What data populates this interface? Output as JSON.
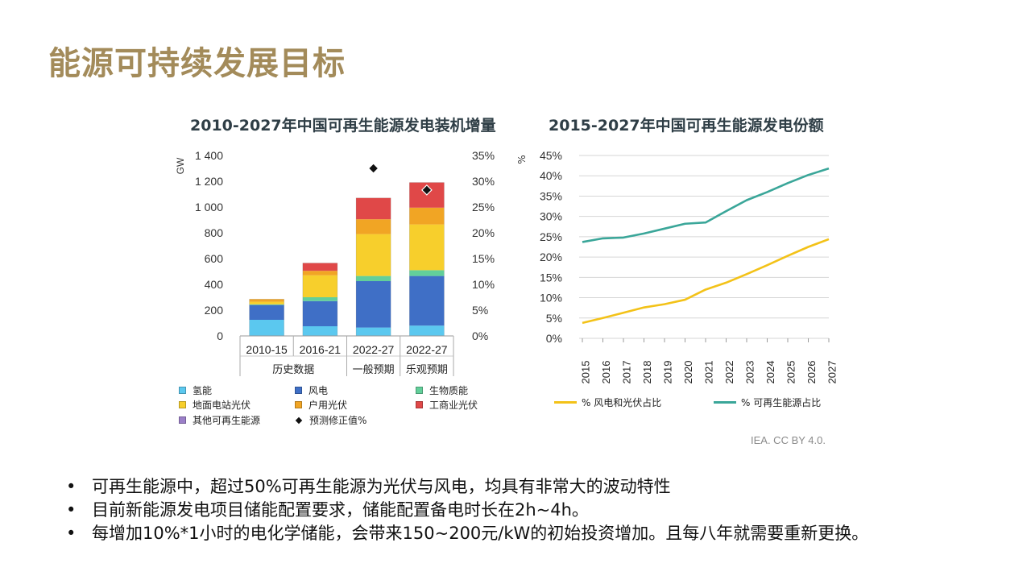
{
  "page": {
    "title": "能源可持续发展目标",
    "source": "IEA. CC BY 4.0.",
    "bullets": [
      "可再生能源中，超过50%可再生能源为光伏与风电，均具有非常大的波动特性",
      "目前新能源发电项目储能配置要求，储能配置备电时长在2h~4h。",
      "每增加10%*1小时的电化学储能，会带来150~200元/kW的初始投资增加。且每八年就需要重新更换。"
    ]
  },
  "chart_data": [
    {
      "type": "bar",
      "stacked": true,
      "title": "2010-2027年中国可再生能源发电装机增量",
      "ylabel": "GW",
      "ylim": [
        0,
        1400
      ],
      "yticks": [
        "0",
        "200",
        "400",
        "600",
        "800",
        "1 000",
        "1 200",
        "1 400"
      ],
      "y2lim": [
        0,
        35
      ],
      "y2ticks": [
        "0%",
        "5%",
        "10%",
        "15%",
        "20%",
        "25%",
        "30%",
        "35%"
      ],
      "categories": [
        "2010-15",
        "2016-21",
        "2022-27",
        "2022-27"
      ],
      "groups": [
        {
          "label": "历史数据",
          "span": 2
        },
        {
          "label": "一般预期",
          "span": 1
        },
        {
          "label": "乐观预期",
          "span": 1
        }
      ],
      "series": [
        {
          "name": "氢能",
          "color": "#5bc8ef",
          "values": [
            125,
            75,
            65,
            80
          ]
        },
        {
          "name": "风电",
          "color": "#3f6fc6",
          "values": [
            115,
            195,
            360,
            385
          ]
        },
        {
          "name": "生物质能",
          "color": "#62cf9a",
          "values": [
            5,
            30,
            40,
            45
          ]
        },
        {
          "name": "地面电站光伏",
          "color": "#f7cf2c",
          "values": [
            20,
            170,
            325,
            355
          ]
        },
        {
          "name": "户用光伏",
          "color": "#f1a524",
          "values": [
            20,
            35,
            115,
            130
          ]
        },
        {
          "name": "工商业光伏",
          "color": "#e04848",
          "values": [
            0,
            60,
            165,
            195
          ]
        },
        {
          "name": "其他可再生能源",
          "color": "#9b7fc8",
          "values": [
            0,
            0,
            0,
            0
          ]
        }
      ],
      "markers": {
        "name": "预测修正值%",
        "values": [
          null,
          null,
          32.5,
          28.3
        ]
      },
      "legend_placement": "bottom"
    },
    {
      "type": "line",
      "title": "2015-2027年中国可再生能源发电份额",
      "ylabel": "%",
      "ylim": [
        0,
        45
      ],
      "yticks": [
        "0%",
        "5%",
        "10%",
        "15%",
        "20%",
        "25%",
        "30%",
        "35%",
        "40%",
        "45%"
      ],
      "x": [
        "2015",
        "2016",
        "2017",
        "2018",
        "2019",
        "2020",
        "2021",
        "2022",
        "2023",
        "2024",
        "2025",
        "2026",
        "2027"
      ],
      "series": [
        {
          "name": "% 风电和光伏占比",
          "color": "#f3c218",
          "values": [
            3.8,
            5.0,
            6.3,
            7.6,
            8.4,
            9.5,
            12.0,
            13.7,
            15.8,
            18.0,
            20.3,
            22.5,
            24.4
          ]
        },
        {
          "name": "% 可再生能源占比",
          "color": "#3aa699",
          "values": [
            23.7,
            24.6,
            24.8,
            25.8,
            27.0,
            28.2,
            28.5,
            31.3,
            34.0,
            36.0,
            38.2,
            40.2,
            41.8
          ]
        }
      ],
      "grid": true,
      "legend_placement": "bottom"
    }
  ]
}
